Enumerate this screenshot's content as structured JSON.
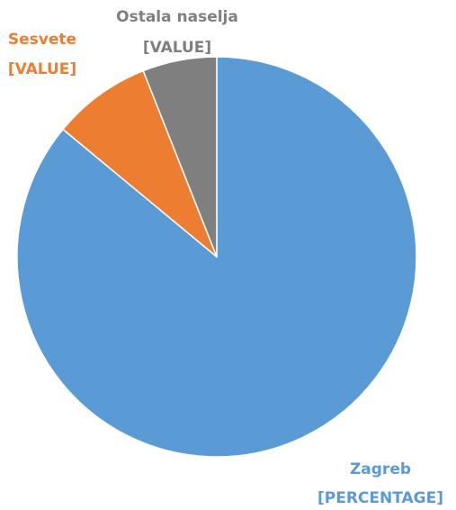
{
  "chart_data": {
    "type": "pie",
    "categories": [
      "Zagreb",
      "Sesvete",
      "Ostala naselja"
    ],
    "values": [
      86,
      8,
      6
    ],
    "value_labels": [
      "[PERCENTAGE]",
      "[VALUE]",
      "[VALUE]"
    ],
    "colors": [
      "#5b9bd5",
      "#ed7d31",
      "#7f7f7f"
    ]
  }
}
